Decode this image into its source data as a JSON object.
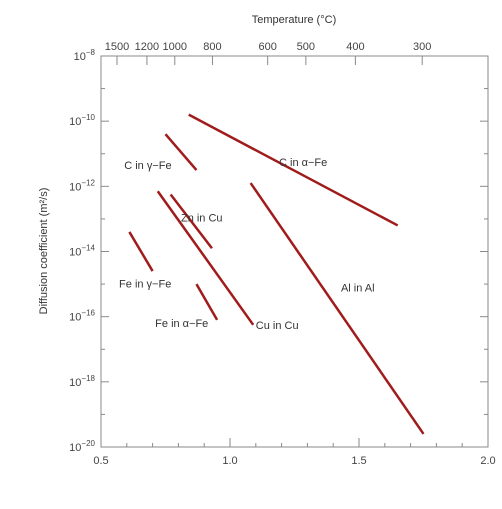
{
  "chart_data": {
    "type": "line",
    "xlabel": "",
    "ylabel": "Diffusion coefficient (m²/s)",
    "top_axis_title": "Temperature (°C)",
    "xlim": [
      0.5,
      2.0
    ],
    "ylim_exponent": [
      -20,
      -8
    ],
    "y_scale": "log",
    "grid": false,
    "x_ticks": [
      {
        "value": 0.5,
        "label": "0.5"
      },
      {
        "value": 1.0,
        "label": "1.0"
      },
      {
        "value": 1.5,
        "label": "1.5"
      },
      {
        "value": 2.0,
        "label": "2.0"
      }
    ],
    "y_ticks": [
      {
        "exponent": -8,
        "base": "10",
        "sup": "−8"
      },
      {
        "exponent": -10,
        "base": "10",
        "sup": "−10"
      },
      {
        "exponent": -12,
        "base": "10",
        "sup": "−12"
      },
      {
        "exponent": -14,
        "base": "10",
        "sup": "−14"
      },
      {
        "exponent": -16,
        "base": "10",
        "sup": "−16"
      },
      {
        "exponent": -18,
        "base": "10",
        "sup": "−18"
      },
      {
        "exponent": -20,
        "base": "10",
        "sup": "−20"
      }
    ],
    "top_ticks": [
      {
        "label": "1500",
        "x": 0.562
      },
      {
        "label": "1200",
        "x": 0.678
      },
      {
        "label": "1000",
        "x": 0.786
      },
      {
        "label": "800",
        "x": 0.932
      },
      {
        "label": "600",
        "x": 1.146
      },
      {
        "label": "500",
        "x": 1.294
      },
      {
        "label": "400",
        "x": 1.486
      },
      {
        "label": "300",
        "x": 1.745
      }
    ],
    "series": [
      {
        "name": "C in α−Fe",
        "x": [
          0.84,
          1.65
        ],
        "y_exponent": [
          -9.8,
          -13.2
        ]
      },
      {
        "name": "C in γ−Fe",
        "x": [
          0.75,
          0.87
        ],
        "y_exponent": [
          -10.4,
          -11.5
        ]
      },
      {
        "name": "Zn in Cu",
        "x": [
          0.77,
          0.93
        ],
        "y_exponent": [
          -12.25,
          -13.9
        ]
      },
      {
        "name": "Cu in Cu",
        "x": [
          0.72,
          1.09
        ],
        "y_exponent": [
          -12.15,
          -16.25
        ]
      },
      {
        "name": "Al in Al",
        "x": [
          1.08,
          1.75
        ],
        "y_exponent": [
          -11.9,
          -19.6
        ]
      },
      {
        "name": "Fe in γ−Fe",
        "x": [
          0.61,
          0.7
        ],
        "y_exponent": [
          -13.4,
          -14.6
        ]
      },
      {
        "name": "Fe in α−Fe",
        "x": [
          0.87,
          0.95
        ],
        "y_exponent": [
          -15.0,
          -16.1
        ]
      }
    ],
    "series_color": "#a01c1c",
    "annotations": [
      {
        "text": "C in α−Fe",
        "x": 1.19,
        "y_exponent": -11.25
      },
      {
        "text": "C in γ−Fe",
        "x": 0.59,
        "y_exponent": -11.35
      },
      {
        "text": "Zn in Cu",
        "x": 0.81,
        "y_exponent": -12.95
      },
      {
        "text": "Cu in Cu",
        "x": 1.1,
        "y_exponent": -16.25
      },
      {
        "text": "Al in Al",
        "x": 1.43,
        "y_exponent": -15.1
      },
      {
        "text": "Fe in γ−Fe",
        "x": 0.57,
        "y_exponent": -14.98
      },
      {
        "text": "Fe in α−Fe",
        "x": 0.71,
        "y_exponent": -16.2
      }
    ]
  }
}
